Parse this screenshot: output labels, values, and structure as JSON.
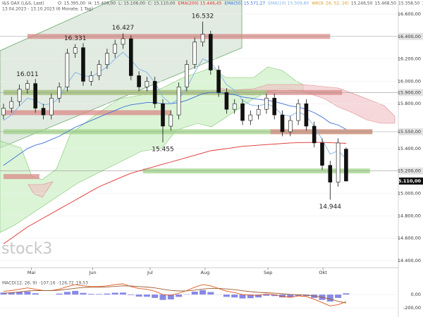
{
  "header": {
    "instrument": "I&S DAX (L&S, Last)",
    "ohlc": [
      "O: 15.395,00",
      "H: 15.409,00",
      "L: 15.106,00",
      "C: 15.110,00"
    ],
    "ichimoku": "WK(9, 26, 52, 26)",
    "ichimoku_values": [
      "15.246,50",
      "15.468,50",
      "15.358,50",
      "15.502,50",
      "15.110,00"
    ],
    "period": "13.04.2023 - 13.10.2023 (6 Monate, 1 Tag)",
    "watermark": "stock3"
  },
  "chart_data": {
    "type": "candlestick",
    "open": [
      15700,
      15760,
      15820,
      15930,
      15980,
      15760,
      15700,
      15850,
      15950,
      16250,
      16300,
      16000,
      16050,
      16150,
      16250,
      16330,
      16380,
      16050,
      15950,
      16000,
      15800,
      15600,
      15700,
      15950,
      16150,
      16350,
      16420,
      16100,
      15900,
      15750,
      15800,
      15650,
      15700,
      15750,
      15850,
      15700,
      15550,
      15650,
      15800,
      15600,
      15450,
      15250,
      15100,
      15395
    ],
    "high": [
      15800,
      15860,
      15970,
      16011,
      16020,
      15800,
      15890,
      15990,
      16290,
      16331,
      16340,
      16090,
      16190,
      16290,
      16370,
      16427,
      16410,
      16090,
      16040,
      16040,
      15840,
      15740,
      15990,
      16190,
      16390,
      16532,
      16450,
      16140,
      15940,
      15840,
      15840,
      15740,
      15790,
      15890,
      15890,
      15740,
      15690,
      15840,
      15840,
      15640,
      15490,
      15290,
      15490,
      15409
    ],
    "low": [
      15660,
      15720,
      15780,
      15890,
      15720,
      15660,
      15660,
      15810,
      15910,
      16210,
      15960,
      15960,
      16010,
      16110,
      16210,
      16290,
      16010,
      15910,
      15910,
      15760,
      15455,
      15560,
      15660,
      15910,
      16110,
      16310,
      16060,
      15860,
      15710,
      15710,
      15610,
      15610,
      15660,
      15710,
      15660,
      15510,
      15510,
      15610,
      15560,
      15410,
      15210,
      14944,
      15060,
      15106
    ],
    "close": [
      15760,
      15820,
      15930,
      15980,
      15760,
      15700,
      15850,
      15950,
      16250,
      16300,
      16000,
      16050,
      16150,
      16250,
      16330,
      16380,
      16050,
      15950,
      16000,
      15800,
      15600,
      15700,
      15950,
      16150,
      16350,
      16420,
      16100,
      15900,
      15750,
      15800,
      15650,
      15700,
      15750,
      15850,
      15700,
      15550,
      15650,
      15800,
      15600,
      15450,
      15250,
      15100,
      15450,
      15110
    ],
    "series": [
      {
        "name": "EMA(200)",
        "color": "#e03030",
        "value_label": "15.446,45",
        "values": [
          14550,
          14600,
          14650,
          14700,
          14740,
          14780,
          14820,
          14860,
          14900,
          14940,
          14980,
          15020,
          15060,
          15090,
          15120,
          15150,
          15180,
          15200,
          15220,
          15240,
          15260,
          15280,
          15300,
          15320,
          15340,
          15360,
          15380,
          15390,
          15400,
          15410,
          15420,
          15425,
          15430,
          15435,
          15440,
          15445,
          15450,
          15452,
          15454,
          15455,
          15455,
          15452,
          15450,
          15446.45
        ]
      },
      {
        "name": "EMA(50)",
        "color": "#3a6fd8",
        "value_label": "15.571,27",
        "values": [
          15250,
          15300,
          15350,
          15400,
          15430,
          15450,
          15480,
          15510,
          15550,
          15590,
          15620,
          15650,
          15680,
          15710,
          15740,
          15770,
          15790,
          15800,
          15810,
          15810,
          15800,
          15800,
          15810,
          15830,
          15860,
          15890,
          15900,
          15900,
          15890,
          15880,
          15860,
          15850,
          15840,
          15830,
          15820,
          15800,
          15780,
          15770,
          15750,
          15720,
          15680,
          15630,
          15610,
          15571.27
        ]
      },
      {
        "name": "EMA(10)",
        "color": "#7fb2e8",
        "value_label": "15.309,80",
        "values": [
          15650,
          15700,
          15780,
          15850,
          15830,
          15790,
          15800,
          15850,
          15980,
          16080,
          16050,
          16040,
          16080,
          16130,
          16200,
          16260,
          16190,
          16110,
          16080,
          15990,
          15860,
          15800,
          15840,
          15940,
          16080,
          16200,
          16170,
          16080,
          15970,
          15920,
          15830,
          15790,
          15780,
          15800,
          15770,
          15700,
          15690,
          15730,
          15690,
          15600,
          15480,
          15350,
          15380,
          15309.8
        ]
      }
    ],
    "annotations": [
      {
        "index": 3,
        "value": 16011,
        "label": "16.011"
      },
      {
        "index": 9,
        "value": 16331,
        "label": "16.331"
      },
      {
        "index": 15,
        "value": 16427,
        "label": "16.427"
      },
      {
        "index": 25,
        "value": 16532,
        "label": "16.532"
      },
      {
        "index": 20,
        "value": 15455,
        "label": "15.455"
      },
      {
        "index": 41,
        "value": 14944,
        "label": "14.944"
      }
    ],
    "zones": [
      {
        "value": 16400,
        "from": 3,
        "to": 41,
        "color": "#d98a86"
      },
      {
        "value": 15900,
        "from": 0,
        "to": 42.5,
        "color": "#d98a86"
      },
      {
        "value": 15900,
        "from": 0,
        "to": 33,
        "color": "#9fd487"
      },
      {
        "value": 15720,
        "from": 0,
        "to": 21,
        "color": "#d98a86"
      },
      {
        "value": 15550,
        "from": 0,
        "to": 46.3,
        "color": "#9fd487"
      },
      {
        "value": 15550,
        "from": 33.5,
        "to": 46.3,
        "color": "#d98a86"
      },
      {
        "value": 15200,
        "from": 17.5,
        "to": 46,
        "color": "#9fd487"
      },
      {
        "value": 15150,
        "from": 0,
        "to": 4.5,
        "color": "#d98a86"
      }
    ],
    "ylim": [
      14337,
      16675
    ],
    "yticks": [
      {
        "value": 16600,
        "label": "16.600,00"
      },
      {
        "value": 16200,
        "label": "16.200,00"
      },
      {
        "value": 16000,
        "label": "16.000,00"
      },
      {
        "value": 15800,
        "label": "15.800,00"
      },
      {
        "value": 15400,
        "label": "15.400,00"
      },
      {
        "value": 15000,
        "label": "15.000,00"
      },
      {
        "value": 14800,
        "label": "14.800,00"
      },
      {
        "value": 14600,
        "label": "14.600,00"
      },
      {
        "value": 14400,
        "label": "14.400,00"
      }
    ],
    "marked_levels": [
      {
        "value": 16400,
        "label": "16.400,00"
      },
      {
        "value": 15900,
        "label": "15.900,00"
      },
      {
        "value": 15550,
        "label": "15.550,00"
      },
      {
        "value": 15200,
        "label": "15.200,00"
      }
    ],
    "last_price": {
      "value": 15110,
      "label": "15.110,00"
    },
    "xticks": [
      {
        "value": 3.5,
        "label": "Mai"
      },
      {
        "value": 11.2,
        "label": "Jun"
      },
      {
        "value": 18.4,
        "label": "Jul"
      },
      {
        "value": 25.3,
        "label": "Aug"
      },
      {
        "value": 33.2,
        "label": "Sep"
      },
      {
        "value": 40.1,
        "label": "Okt"
      }
    ],
    "grid": true,
    "macd": {
      "title": "MACD(12, 26, 9)",
      "value_labels": [
        "-107,16",
        "-126,72",
        "19,53"
      ],
      "macd": [
        50,
        60,
        80,
        100,
        80,
        60,
        60,
        80,
        120,
        150,
        130,
        120,
        120,
        130,
        150,
        160,
        120,
        90,
        80,
        50,
        0,
        -10,
        20,
        60,
        110,
        150,
        130,
        90,
        50,
        30,
        0,
        -10,
        -10,
        10,
        0,
        -30,
        -40,
        -20,
        -30,
        -70,
        -120,
        -170,
        -150,
        -107.16
      ],
      "signal": [
        20,
        30,
        40,
        55,
        60,
        60,
        60,
        65,
        80,
        95,
        105,
        110,
        112,
        115,
        122,
        130,
        128,
        120,
        112,
        100,
        80,
        62,
        54,
        55,
        66,
        83,
        92,
        92,
        84,
        73,
        58,
        44,
        33,
        28,
        22,
        12,
        2,
        -2,
        -8,
        -20,
        -40,
        -66,
        -100,
        -126.72
      ],
      "histogram": [
        30,
        30,
        40,
        45,
        20,
        0,
        0,
        15,
        40,
        55,
        25,
        10,
        8,
        15,
        28,
        30,
        -8,
        -30,
        -32,
        -50,
        -80,
        -72,
        -34,
        5,
        44,
        67,
        38,
        -2,
        -34,
        -43,
        -58,
        -54,
        -43,
        -18,
        -22,
        -42,
        -42,
        -18,
        -22,
        -50,
        -80,
        -104,
        -50,
        19.53
      ],
      "macd_color": "#e0551c",
      "signal_color": "#a05a2c",
      "histogram_color": "#6a6ae0",
      "y2lim": [
        -230,
        360
      ],
      "y2ticks": [
        {
          "value": 0,
          "label": "0,00"
        },
        {
          "value": -200,
          "label": "-200,00"
        }
      ]
    }
  }
}
